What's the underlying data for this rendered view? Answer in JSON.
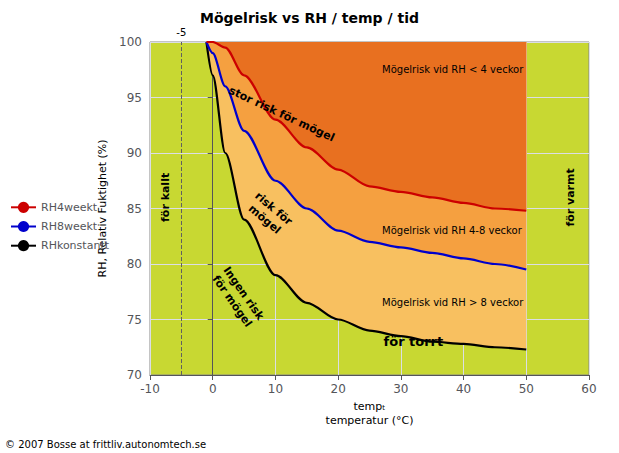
{
  "chart_data": {
    "type": "line",
    "title": "Mögelrisk vs RH / temp / tid",
    "xlabel": "tempₜ\ntemperatur (°C)",
    "ylabel": "RH, Relativ Fuktighet (%)",
    "xlim": [
      -10,
      60
    ],
    "ylim": [
      70,
      100
    ],
    "xticks": [
      -10,
      0,
      10,
      20,
      30,
      40,
      50,
      60
    ],
    "yticks": [
      70,
      75,
      80,
      85,
      90,
      95,
      100
    ],
    "grid": true,
    "x": [
      -1,
      0,
      2,
      5,
      10,
      15,
      20,
      25,
      30,
      35,
      40,
      45,
      50
    ],
    "series": [
      {
        "name": "RHkonstantt",
        "color": "#000000",
        "values": [
          100,
          97,
          90,
          84,
          79,
          76.5,
          75,
          74,
          73.5,
          73,
          72.8,
          72.5,
          72.3
        ]
      },
      {
        "name": "RH8weekt",
        "color": "#0000cc",
        "values": [
          100,
          99,
          96,
          92,
          87.5,
          85,
          83,
          82,
          81.5,
          81,
          80.5,
          80,
          79.5
        ]
      },
      {
        "name": "RH4weekt",
        "color": "#cc0000",
        "values": [
          100,
          100,
          99.5,
          97,
          93,
          90.5,
          88.5,
          87,
          86.5,
          86,
          85.5,
          85,
          84.8
        ]
      }
    ],
    "annotations": [
      {
        "text": "för kallt",
        "x": -7.5,
        "y": 86
      },
      {
        "text": "för varmt",
        "x": 57,
        "y": 86
      },
      {
        "text": "för torrt",
        "x": 32,
        "y": 73.0
      },
      {
        "text": "Ingen risk\nför mögel",
        "x": 4,
        "y": 77.0
      },
      {
        "text": "risk för\nmögel",
        "x": 9,
        "y": 84.5
      },
      {
        "text": "stor risk för mögel",
        "x": 11,
        "y": 93.5
      },
      {
        "text": "Mögelrisk vid RH < 4 veckor",
        "x": 27,
        "y": 97.5
      },
      {
        "text": "Mögelrisk vid RH 4-8 veckor",
        "x": 27,
        "y": 83.0
      },
      {
        "text": "Mögelrisk vid RH > 8 veckor",
        "x": 27,
        "y": 76.5
      },
      {
        "text": "-5",
        "x": -5,
        "line_style": "dashed"
      },
      {
        "text": "© 2007 Bosse at frittliv.autonomtech.se"
      }
    ]
  }
}
